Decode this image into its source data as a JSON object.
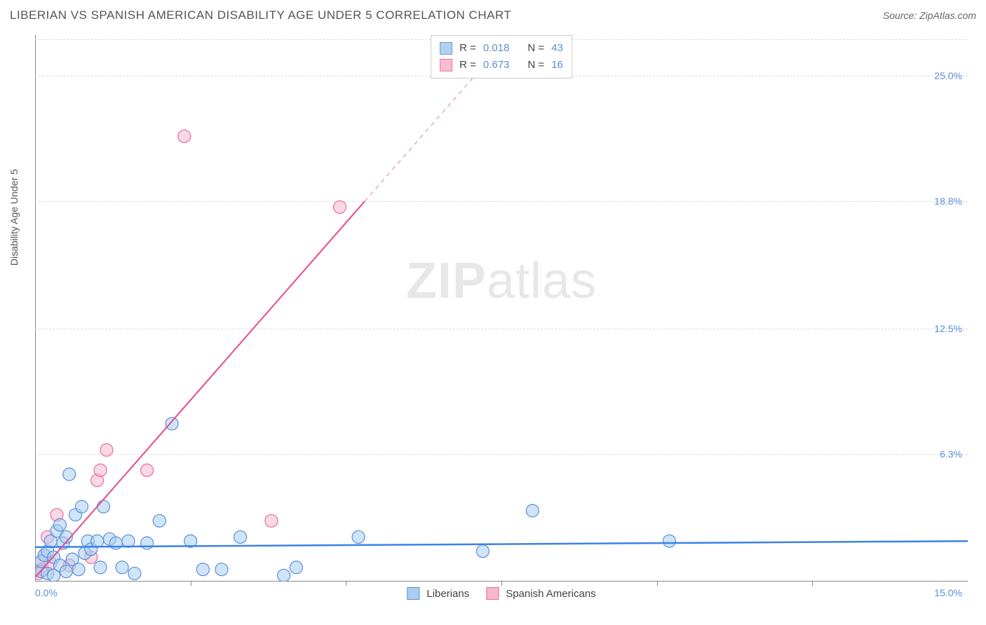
{
  "title": "LIBERIAN VS SPANISH AMERICAN DISABILITY AGE UNDER 5 CORRELATION CHART",
  "source": "Source: ZipAtlas.com",
  "watermark_bold": "ZIP",
  "watermark_light": "atlas",
  "y_axis_label": "Disability Age Under 5",
  "chart": {
    "type": "scatter",
    "xlim": [
      0,
      15
    ],
    "ylim": [
      0,
      27
    ],
    "y_ticks": [
      {
        "v": 6.3,
        "label": "6.3%"
      },
      {
        "v": 12.5,
        "label": "12.5%"
      },
      {
        "v": 18.8,
        "label": "18.8%"
      },
      {
        "v": 25.0,
        "label": "25.0%"
      }
    ],
    "x_tick_left": "0.0%",
    "x_tick_right": "15.0%",
    "x_tick_marks": [
      2.5,
      5.0,
      7.5,
      10.0,
      12.5
    ],
    "background_color": "#ffffff",
    "grid_color": "#dddddd",
    "marker_radius": 9,
    "series": [
      {
        "name": "Liberians",
        "fill": "#a9cdf0",
        "stroke": "#5b8fd6",
        "fill_opacity": 0.55,
        "R": "0.018",
        "N": "43",
        "trend": {
          "x1": 0,
          "y1": 1.7,
          "x2": 15,
          "y2": 2.0,
          "color": "#3b82e6",
          "width": 2.5,
          "dashed_from": null
        },
        "points": [
          [
            0.1,
            0.5
          ],
          [
            0.1,
            1.0
          ],
          [
            0.15,
            1.3
          ],
          [
            0.2,
            0.4
          ],
          [
            0.2,
            1.5
          ],
          [
            0.25,
            2.0
          ],
          [
            0.3,
            0.3
          ],
          [
            0.3,
            1.2
          ],
          [
            0.35,
            2.5
          ],
          [
            0.4,
            0.8
          ],
          [
            0.4,
            2.8
          ],
          [
            0.45,
            1.9
          ],
          [
            0.5,
            0.5
          ],
          [
            0.5,
            2.2
          ],
          [
            0.55,
            5.3
          ],
          [
            0.6,
            1.1
          ],
          [
            0.65,
            3.3
          ],
          [
            0.7,
            0.6
          ],
          [
            0.75,
            3.7
          ],
          [
            0.8,
            1.4
          ],
          [
            0.85,
            2.0
          ],
          [
            0.9,
            1.6
          ],
          [
            1.0,
            2.0
          ],
          [
            1.05,
            0.7
          ],
          [
            1.1,
            3.7
          ],
          [
            1.2,
            2.1
          ],
          [
            1.3,
            1.9
          ],
          [
            1.4,
            0.7
          ],
          [
            1.5,
            2.0
          ],
          [
            1.6,
            0.4
          ],
          [
            1.8,
            1.9
          ],
          [
            2.0,
            3.0
          ],
          [
            2.2,
            7.8
          ],
          [
            2.5,
            2.0
          ],
          [
            2.7,
            0.6
          ],
          [
            3.0,
            0.6
          ],
          [
            3.3,
            2.2
          ],
          [
            4.0,
            0.3
          ],
          [
            4.2,
            0.7
          ],
          [
            5.2,
            2.2
          ],
          [
            7.2,
            1.5
          ],
          [
            8.0,
            3.5
          ],
          [
            10.2,
            2.0
          ]
        ]
      },
      {
        "name": "Spanish Americans",
        "fill": "#f6b8ce",
        "stroke": "#e86aa0",
        "fill_opacity": 0.55,
        "R": "0.673",
        "N": "16",
        "trend": {
          "x1": 0,
          "y1": 0.2,
          "x2": 8.5,
          "y2": 30,
          "solid_to_x": 5.3,
          "color": "#e84a8f",
          "width": 2,
          "dash_color": "#e9a5c2"
        },
        "points": [
          [
            0.05,
            0.4
          ],
          [
            0.1,
            1.0
          ],
          [
            0.12,
            0.6
          ],
          [
            0.15,
            1.3
          ],
          [
            0.2,
            2.2
          ],
          [
            0.25,
            0.9
          ],
          [
            0.35,
            3.3
          ],
          [
            0.55,
            0.8
          ],
          [
            0.9,
            1.2
          ],
          [
            1.0,
            5.0
          ],
          [
            1.05,
            5.5
          ],
          [
            1.15,
            6.5
          ],
          [
            1.8,
            5.5
          ],
          [
            2.4,
            22.0
          ],
          [
            3.8,
            3.0
          ],
          [
            4.9,
            18.5
          ]
        ]
      }
    ]
  },
  "legend_top": {
    "r_label": "R = ",
    "n_label": "N = "
  }
}
